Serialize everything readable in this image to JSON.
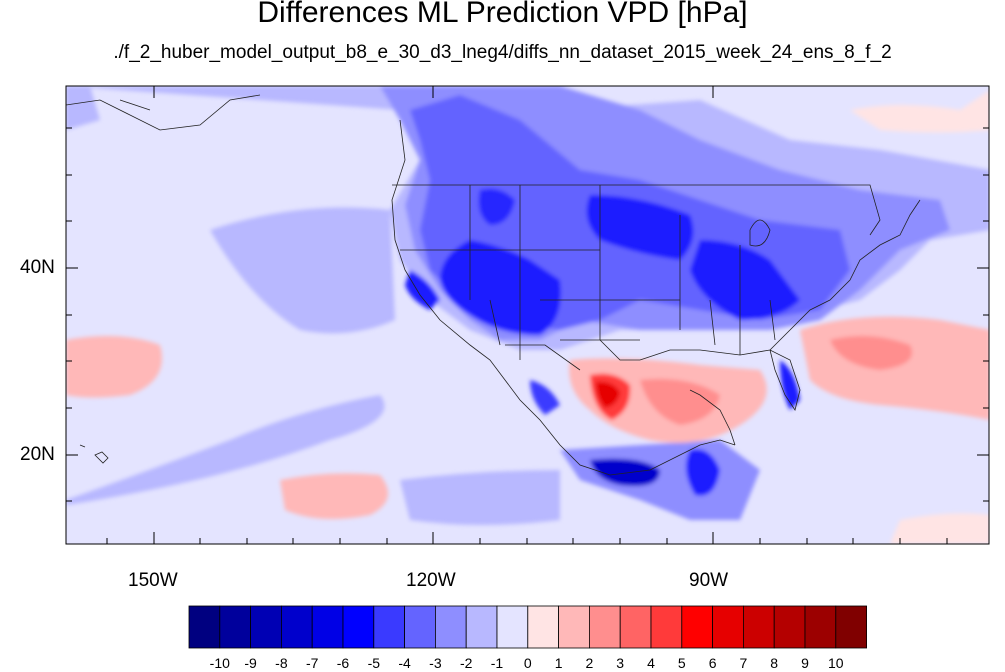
{
  "chart_data": {
    "type": "heatmap",
    "title": "Differences ML Prediction VPD [hPa]",
    "subtitle": "./f_2_huber_model_output_b8_e_30_d3_lneg4/diffs_nn_dataset_2015_week_24_ens_8_f_2",
    "x_ticks": [
      "150W",
      "120W",
      "90W"
    ],
    "y_ticks": [
      "40N",
      "20N"
    ],
    "colorbar": {
      "labels": [
        "-10",
        "-9",
        "-8",
        "-7",
        "-6",
        "-5",
        "-4",
        "-3",
        "-2",
        "-1",
        "0",
        "1",
        "2",
        "3",
        "4",
        "5",
        "6",
        "7",
        "8",
        "9",
        "10"
      ],
      "colors": [
        "#000080",
        "#00009c",
        "#0000b4",
        "#0000cc",
        "#0000e6",
        "#0000ff",
        "#3a3aff",
        "#6464ff",
        "#8e8eff",
        "#b8b8ff",
        "#e4e4ff",
        "#ffe4e4",
        "#ffb8b8",
        "#ff8e8e",
        "#ff6464",
        "#ff3a3a",
        "#ff0000",
        "#e60000",
        "#cc0000",
        "#b40000",
        "#9c0000",
        "#800000"
      ]
    }
  }
}
